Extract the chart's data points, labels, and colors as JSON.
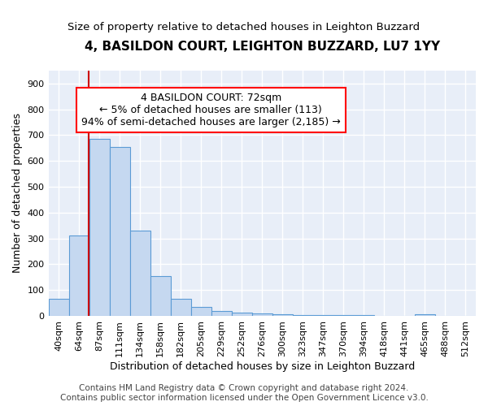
{
  "title": "4, BASILDON COURT, LEIGHTON BUZZARD, LU7 1YY",
  "subtitle": "Size of property relative to detached houses in Leighton Buzzard",
  "xlabel": "Distribution of detached houses by size in Leighton Buzzard",
  "ylabel": "Number of detached properties",
  "footer_line1": "Contains HM Land Registry data © Crown copyright and database right 2024.",
  "footer_line2": "Contains public sector information licensed under the Open Government Licence v3.0.",
  "bar_labels": [
    "40sqm",
    "64sqm",
    "87sqm",
    "111sqm",
    "134sqm",
    "158sqm",
    "182sqm",
    "205sqm",
    "229sqm",
    "252sqm",
    "276sqm",
    "300sqm",
    "323sqm",
    "347sqm",
    "370sqm",
    "394sqm",
    "418sqm",
    "441sqm",
    "465sqm",
    "488sqm",
    "512sqm"
  ],
  "bar_values": [
    65,
    310,
    685,
    655,
    330,
    155,
    67,
    35,
    20,
    13,
    8,
    5,
    4,
    2,
    2,
    2,
    0,
    0,
    7,
    0,
    0
  ],
  "bar_color": "#c5d8f0",
  "bar_edge_color": "#5b9bd5",
  "annotation_title": "4 BASILDON COURT: 72sqm",
  "annotation_line1": "← 5% of detached houses are smaller (113)",
  "annotation_line2": "94% of semi-detached houses are larger (2,185) →",
  "vline_color": "#cc0000",
  "vline_x_index": 1.48,
  "ylim": [
    0,
    950
  ],
  "yticks": [
    0,
    100,
    200,
    300,
    400,
    500,
    600,
    700,
    800,
    900
  ],
  "axes_bg_color": "#e8eef8",
  "fig_bg_color": "#ffffff",
  "grid_color": "#ffffff",
  "title_fontsize": 11,
  "subtitle_fontsize": 9.5,
  "ylabel_fontsize": 9,
  "xlabel_fontsize": 9,
  "tick_fontsize": 8,
  "annot_fontsize": 9,
  "footer_fontsize": 7.5
}
